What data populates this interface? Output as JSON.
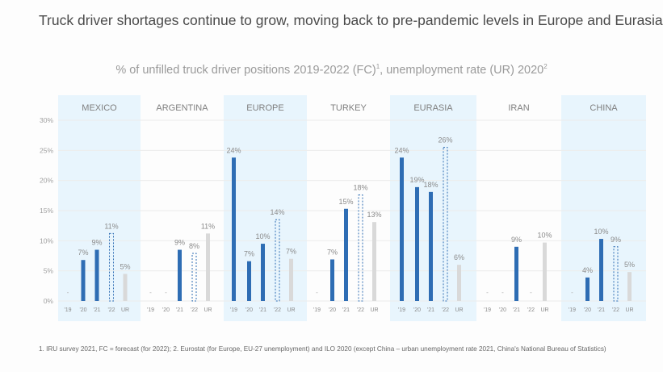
{
  "title": "Truck driver shortages continue to grow, moving back to pre-pandemic levels in Europe and Eurasia",
  "subtitle": "% of unfilled truck driver positions 2019-2022 (FC)",
  "subtitle_sup1": "1",
  "subtitle_rest": ", unemployment rate (UR) 2020",
  "subtitle_sup2": "2",
  "footnote": "1. IRU survey 2021, FC = forecast (for 2022); 2. Eurostat (for Europe, EU-27 unemployment) and ILO 2020 (except China –  urban unemployment rate 2021, China's National Bureau of Statistics)",
  "chart_data": {
    "type": "bar",
    "ylim": [
      0,
      30
    ],
    "yticks": [
      "0%",
      "5%",
      "10%",
      "15%",
      "20%",
      "25%",
      "30%"
    ],
    "categories": [
      "'19",
      "'20",
      "'21",
      "'22",
      "UR"
    ],
    "missing_marker": "-",
    "colors": {
      "actual": "#2e6db4",
      "forecast": "#2e6db4",
      "unemployment": "#d9d9d9",
      "panel_highlight": "#e8f5fd",
      "grid": "#ececec"
    },
    "panels": [
      {
        "name": "MEXICO",
        "highlight": true,
        "values": [
          null,
          6.8,
          8.5,
          11.2,
          4.5
        ],
        "labels": [
          "",
          "7%",
          "9%",
          "11%",
          "5%"
        ]
      },
      {
        "name": "ARGENTINA",
        "highlight": false,
        "values": [
          null,
          null,
          8.5,
          7.9,
          11.2
        ],
        "labels": [
          "",
          "",
          "9%",
          "8%",
          "11%"
        ]
      },
      {
        "name": "EUROPE",
        "highlight": true,
        "values": [
          23.8,
          6.6,
          9.5,
          13.5,
          7.0
        ],
        "labels": [
          "24%",
          "7%",
          "10%",
          "14%",
          "7%"
        ]
      },
      {
        "name": "TURKEY",
        "highlight": false,
        "values": [
          null,
          6.9,
          15.3,
          17.6,
          13.1
        ],
        "labels": [
          "",
          "7%",
          "15%",
          "18%",
          "13%"
        ]
      },
      {
        "name": "EURASIA",
        "highlight": true,
        "values": [
          23.8,
          18.9,
          18.1,
          25.5,
          6.0
        ],
        "labels": [
          "24%",
          "19%",
          "18%",
          "26%",
          "6%"
        ]
      },
      {
        "name": "IRAN",
        "highlight": false,
        "values": [
          null,
          null,
          9.0,
          null,
          9.7
        ],
        "labels": [
          "",
          "",
          "9%",
          "",
          "10%"
        ]
      },
      {
        "name": "CHINA",
        "highlight": true,
        "values": [
          null,
          3.9,
          10.3,
          9.0,
          4.8
        ],
        "labels": [
          "",
          "4%",
          "10%",
          "9%",
          "5%"
        ]
      }
    ]
  }
}
